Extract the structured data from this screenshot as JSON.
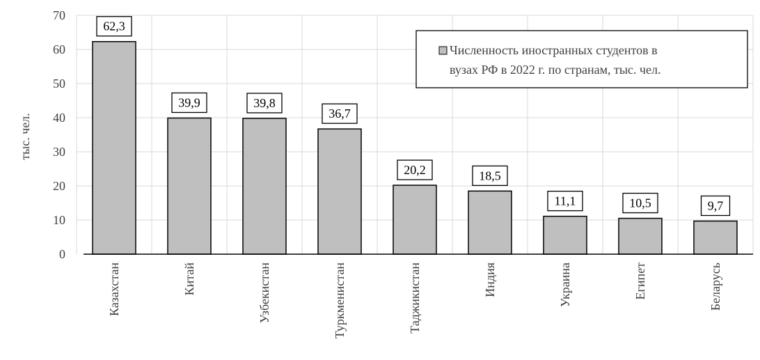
{
  "chart_data": {
    "type": "bar",
    "categories": [
      "Казахстан",
      "Китай",
      "Узбекистан",
      "Туркменистан",
      "Таджикистан",
      "Индия",
      "Украина",
      "Египет",
      "Беларусь"
    ],
    "series": [
      {
        "name": "Численность иностранных студентов в вузах РФ в 2022 г. по странам, тыс. чел.",
        "values": [
          62.3,
          39.9,
          39.8,
          36.7,
          20.2,
          18.5,
          11.1,
          10.5,
          9.7
        ]
      }
    ],
    "data_labels": [
      "62,3",
      "39,9",
      "39,8",
      "36,7",
      "20,2",
      "18,5",
      "11,1",
      "10,5",
      "9,7"
    ],
    "legend_lines": [
      "Численность иностранных студентов в",
      "вузах РФ в 2022 г. по странам, тыс. чел."
    ],
    "ylabel": "тыс. чел.",
    "ylim": [
      0,
      70
    ],
    "yticks": [
      0,
      10,
      20,
      30,
      40,
      50,
      60,
      70
    ],
    "grid": true,
    "legend_position": "top-right",
    "colors": {
      "bar": "#bfbfbf",
      "bar_edge": "#000000",
      "grid": "#d9d9d9",
      "axis": "#000000"
    }
  }
}
